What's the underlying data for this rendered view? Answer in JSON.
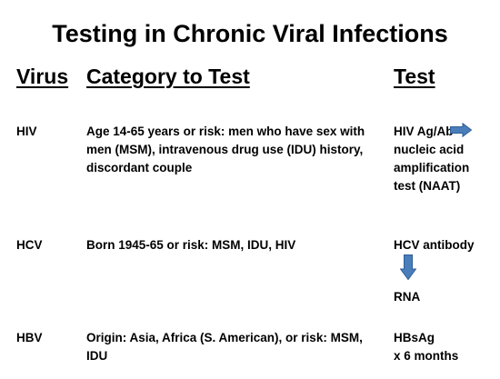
{
  "title": "Testing in Chronic Viral Infections",
  "headers": {
    "virus": "Virus",
    "category": "Category to Test",
    "test": "Test"
  },
  "rows": [
    {
      "virus": "HIV",
      "category_lines": [
        "Age 14-65 years or risk: men who have sex with",
        "men (MSM), intravenous drug use (IDU) history,",
        "discordant couple"
      ],
      "test_lines": [
        "HIV Ag/Ab",
        "nucleic acid",
        "amplification",
        "test (NAAT)"
      ]
    },
    {
      "virus": "HCV",
      "category_lines": [
        "Born 1945-65 or risk: MSM, IDU, HIV"
      ],
      "test_lines": [
        "HCV antibody",
        "RNA"
      ]
    },
    {
      "virus": "HBV",
      "category_lines": [
        "Origin: Asia, Africa (S. American), or risk: MSM,",
        "IDU"
      ],
      "test_lines": [
        "HBsAg",
        "x 6 months"
      ]
    }
  ],
  "colors": {
    "arrow_fill": "#4a7ebb",
    "arrow_stroke": "#2f5d95"
  },
  "icons": [
    "arrow-right-icon",
    "arrow-down-icon"
  ]
}
